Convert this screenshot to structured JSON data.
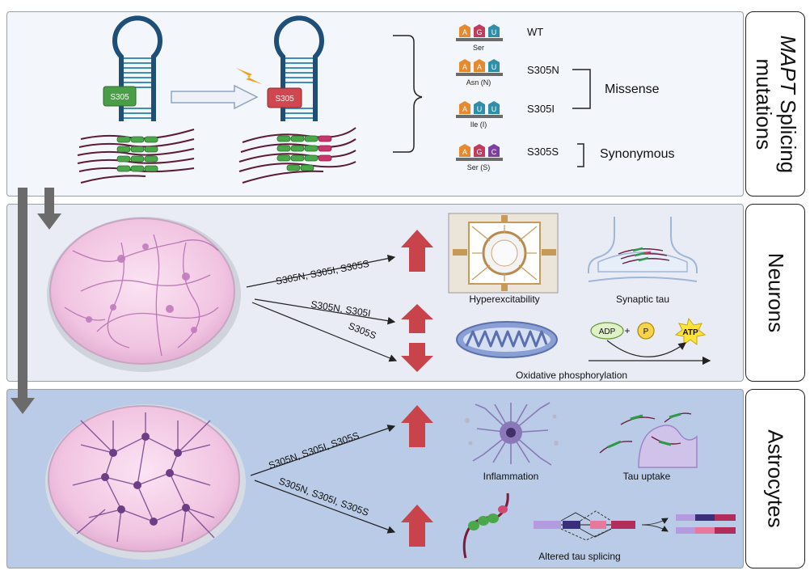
{
  "panels": {
    "top_title_italic": "MAPT",
    "top_title_rest": " Splicing",
    "top_title_line2": "mutations",
    "middle_title": "Neurons",
    "bottom_title": "Astrocytes"
  },
  "mutation_box": {
    "label": "S305"
  },
  "codons": [
    {
      "nts": [
        "A",
        "G",
        "U"
      ],
      "aa": "Ser",
      "name": "WT"
    },
    {
      "nts": [
        "A",
        "A",
        "U"
      ],
      "aa": "Asn (N)",
      "name": "S305N"
    },
    {
      "nts": [
        "A",
        "U",
        "U"
      ],
      "aa": "Ile (I)",
      "name": "S305I"
    },
    {
      "nts": [
        "A",
        "G",
        "C"
      ],
      "aa": "Ser (S)",
      "name": "S305S"
    }
  ],
  "mutation_classes": {
    "missense": "Missense",
    "synonymous": "Synonymous"
  },
  "neurons": {
    "arrow1_label": "S305N, S305I, S305S",
    "arrow2_label": "S305N, S305I",
    "arrow3_label": "S305S",
    "hyperexcitability": "Hyperexcitability",
    "synaptic_tau": "Synaptic tau",
    "adp": "ADP",
    "plus": "+",
    "p": "P",
    "atp": "ATP",
    "oxphos": "Oxidative phosphorylation"
  },
  "astrocytes": {
    "arrow1_label": "S305N, S305I, S305S",
    "arrow2_label": "S305N, S305I, S305S",
    "inflammation": "Inflammation",
    "tau_uptake": "Tau uptake",
    "altered_splicing": "Altered tau splicing"
  },
  "colors": {
    "top_bg": "#f3f6fa",
    "mid_bg": "#e9ecf5",
    "bot_bg": "#b9cbe6",
    "red_arrow": "#c9434a",
    "green": "#3f9a45",
    "mutation_red": "#d0474f",
    "hairpin": "#1e4f78",
    "dish_pink": "#f2c9e3"
  }
}
